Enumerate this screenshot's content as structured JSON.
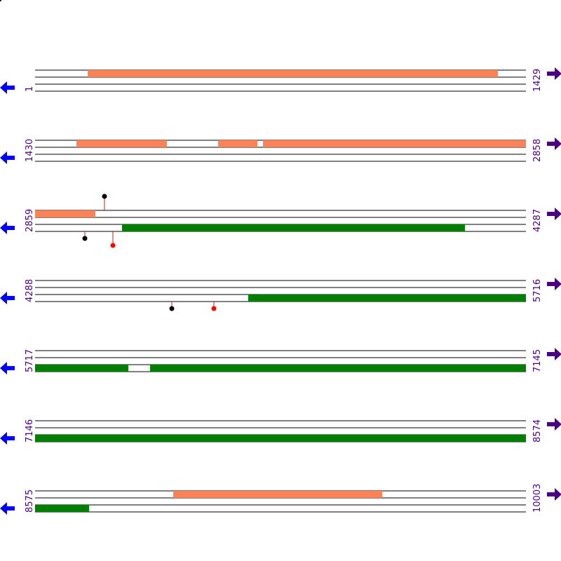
{
  "rows": [
    {
      "start": "1",
      "end": "1429"
    },
    {
      "start": "1430",
      "end": "2858"
    },
    {
      "start": "2859",
      "end": "4287"
    },
    {
      "start": "4288",
      "end": "5716"
    },
    {
      "start": "5717",
      "end": "7145"
    },
    {
      "start": "7146",
      "end": "8574"
    },
    {
      "start": "8575",
      "end": "10003"
    }
  ]
}
